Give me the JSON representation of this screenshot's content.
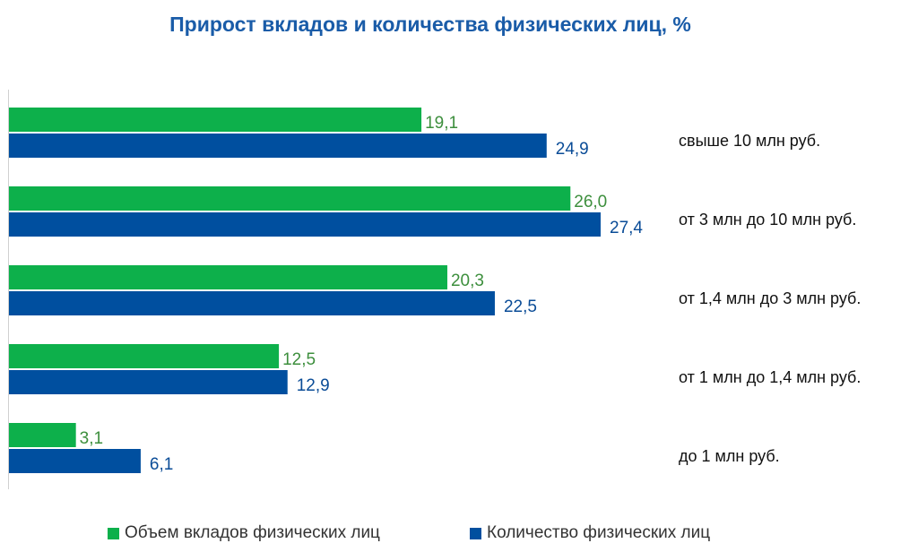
{
  "chart_data": {
    "type": "bar",
    "orientation": "horizontal",
    "title": "Прирост вкладов и количества физических лиц, %",
    "categories": [
      "свыше 10 млн руб.",
      "от 3 млн до 10 млн руб.",
      "от 1,4 млн до 3 млн руб.",
      "от 1 млн до 1,4 млн руб.",
      "до 1 млн руб."
    ],
    "series": [
      {
        "name": "Объем вкладов физических лиц",
        "color": "#0db04b",
        "label_color": "#3d8f3d",
        "values": [
          19.1,
          26.0,
          20.3,
          12.5,
          3.1
        ],
        "labels": [
          "19,1",
          "26,0",
          "20,3",
          "12,5",
          "3,1"
        ]
      },
      {
        "name": "Количество физических лиц",
        "color": "#004f9f",
        "label_color": "#0a4c97",
        "values": [
          24.9,
          27.4,
          22.5,
          12.9,
          6.1
        ],
        "labels": [
          "24,9",
          "27,4",
          "22,5",
          "12,9",
          "6,1"
        ]
      }
    ],
    "xlim": [
      0,
      27.4
    ],
    "grid": false,
    "legend": "bottom"
  }
}
